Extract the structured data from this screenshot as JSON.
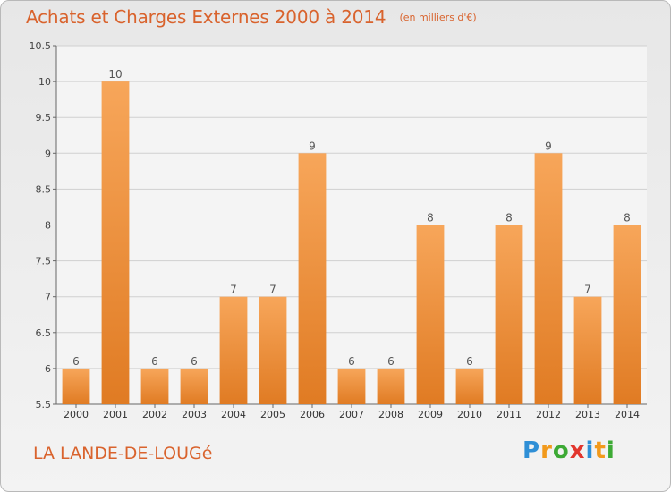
{
  "header": {
    "title": "Achats et Charges Externes 2000 à 2014",
    "subtitle": "(en milliers d'€)"
  },
  "footer": {
    "commune": "LA LANDE-DE-LOUGé",
    "logo_text": "Proxiti"
  },
  "colors": {
    "title": "#d9632d",
    "bar_light": "#f7a65a",
    "bar_dark": "#e07b23",
    "grid": "#d0d0d0",
    "axis": "#666666"
  },
  "chart_data": {
    "type": "bar",
    "title": "Achats et Charges Externes 2000 à 2014",
    "subtitle": "(en milliers d'€)",
    "categories": [
      "2000",
      "2001",
      "2002",
      "2003",
      "2004",
      "2005",
      "2006",
      "2007",
      "2008",
      "2009",
      "2010",
      "2011",
      "2012",
      "2013",
      "2014"
    ],
    "values": [
      6,
      10,
      6,
      6,
      7,
      7,
      9,
      6,
      6,
      8,
      6,
      8,
      9,
      7,
      8
    ],
    "data_labels": [
      "6",
      "10",
      "6",
      "6",
      "7",
      "7",
      "9",
      "6",
      "6",
      "8",
      "6",
      "8",
      "9",
      "7",
      "8"
    ],
    "ylim": [
      5.5,
      10.5
    ],
    "yticks": [
      5.5,
      6,
      6.5,
      7,
      7.5,
      8,
      8.5,
      9,
      9.5,
      10,
      10.5
    ],
    "ytick_labels": [
      "5.5",
      "6",
      "6.5",
      "7",
      "7.5",
      "8",
      "8.5",
      "9",
      "9.5",
      "10",
      "10.5"
    ],
    "grid": true,
    "xlabel": "",
    "ylabel": ""
  }
}
